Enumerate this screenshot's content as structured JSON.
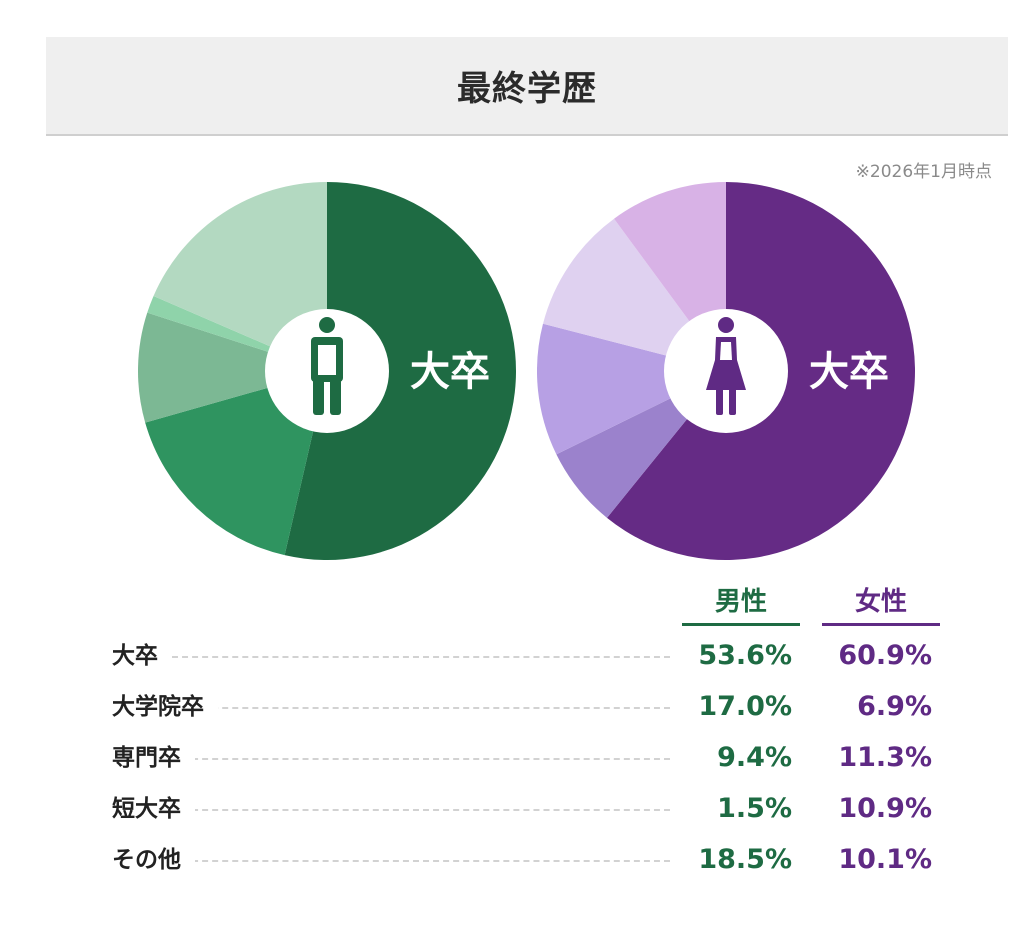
{
  "title": "最終学歴",
  "as_of": "※2026年1月時点",
  "center_label": "大卒",
  "colors": {
    "male": [
      "#1e6b43",
      "#2f9460",
      "#7cb894",
      "#8fd3aa",
      "#b3d9c1"
    ],
    "female": [
      "#652b85",
      "#9b82cc",
      "#b7a0e4",
      "#dfd1f0",
      "#d8b2e6"
    ],
    "male_text": "#1e6b43",
    "female_text": "#5f2a84"
  },
  "icons": {
    "male": "male-person-icon",
    "female": "female-person-icon"
  },
  "table": {
    "male_header": "男性",
    "female_header": "女性",
    "rows": [
      {
        "label": "大卒",
        "male": "53.6%",
        "female": "60.9%"
      },
      {
        "label": "大学院卒",
        "male": "17.0%",
        "female": "6.9%"
      },
      {
        "label": "専門卒",
        "male": "9.4%",
        "female": "11.3%"
      },
      {
        "label": "短大卒",
        "male": "1.5%",
        "female": "10.9%"
      },
      {
        "label": "その他",
        "male": "18.5%",
        "female": "10.1%"
      }
    ]
  },
  "chart_data": [
    {
      "type": "pie",
      "name": "男性",
      "categories": [
        "大卒",
        "大学院卒",
        "専門卒",
        "短大卒",
        "その他"
      ],
      "values": [
        53.6,
        17.0,
        9.4,
        1.5,
        18.5
      ],
      "center_label": "大卒"
    },
    {
      "type": "pie",
      "name": "女性",
      "categories": [
        "大卒",
        "大学院卒",
        "専門卒",
        "短大卒",
        "その他"
      ],
      "values": [
        60.9,
        6.9,
        11.3,
        10.9,
        10.1
      ],
      "center_label": "大卒"
    }
  ]
}
